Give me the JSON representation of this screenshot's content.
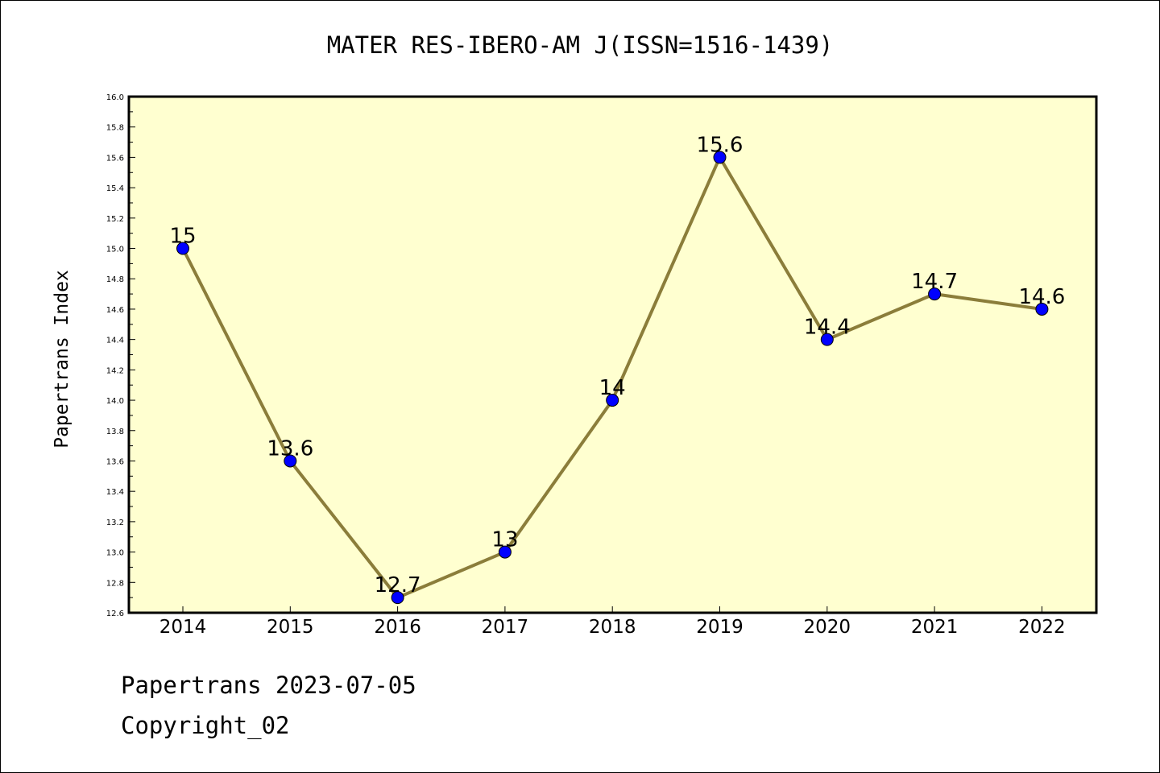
{
  "chart_data": {
    "type": "line",
    "title": "MATER RES-IBERO-AM J(ISSN=1516-1439)",
    "xlabel": "",
    "ylabel": "Papertrans Index",
    "categories": [
      "2014",
      "2015",
      "2016",
      "2017",
      "2018",
      "2019",
      "2020",
      "2021",
      "2022"
    ],
    "values": [
      15,
      13.6,
      12.7,
      13,
      14,
      15.6,
      14.4,
      14.7,
      14.6
    ],
    "data_labels": [
      "15",
      "13.6",
      "12.7",
      "13",
      "14",
      "15.6",
      "14.4",
      "14.7",
      "14.6"
    ],
    "ylim": [
      12.6,
      16.0
    ],
    "yticks": [
      "12.6",
      "12.8",
      "13.0",
      "13.2",
      "13.4",
      "13.6",
      "13.8",
      "14.0",
      "14.2",
      "14.4",
      "14.6",
      "14.8",
      "15.0",
      "15.2",
      "15.4",
      "15.6",
      "15.8",
      "16.0"
    ],
    "grid": false,
    "legend": "none",
    "colors": {
      "plot_background": "#FFFFD0",
      "line": "#8B7D3A",
      "marker": "#0000FF",
      "axis": "#000000"
    }
  },
  "footer": {
    "source": "Papertrans 2023-07-05",
    "copyright": "Copyright_02"
  }
}
